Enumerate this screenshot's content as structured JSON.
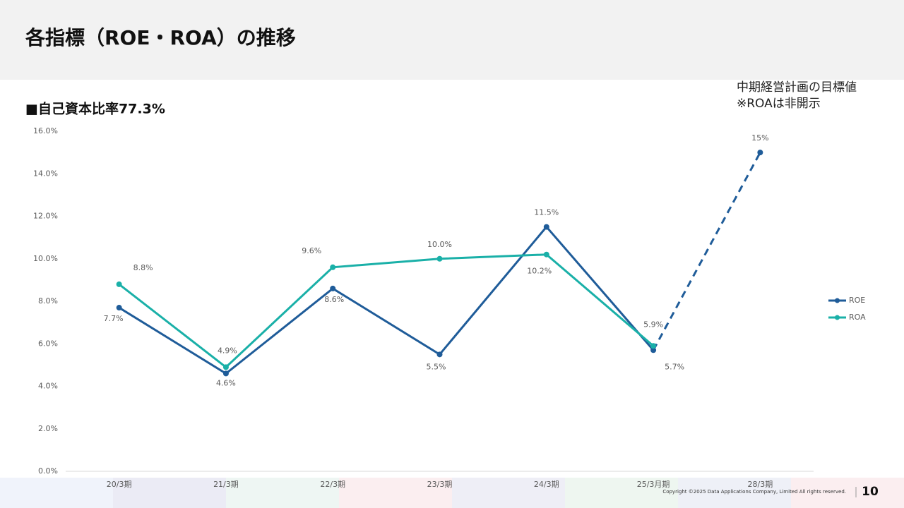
{
  "page_title": "各指標（ROE・ROA）の推移",
  "subtitle": "■自己資本比率77.3%",
  "annotation": [
    "中期経営計画の目標値",
    "※ROAは非開示"
  ],
  "footer": {
    "copyright": "Copyright ©2025  Data Applications Company, Limited All rights reserved.",
    "page_number": "10"
  },
  "chart_data": {
    "type": "line",
    "categories": [
      "20/3期",
      "21/3期",
      "22/3期",
      "23/3期",
      "24/3期",
      "25/3月期",
      "28/3期"
    ],
    "forecast_categories": [
      "28/3期"
    ],
    "series": [
      {
        "name": "ROE",
        "color": "#1f5c99",
        "values": [
          7.7,
          4.6,
          8.6,
          5.5,
          11.5,
          5.7,
          15
        ],
        "value_labels": [
          "7.7%",
          "4.6%",
          "8.6%",
          "5.5%",
          "11.5%",
          "5.7%",
          "15%"
        ]
      },
      {
        "name": "ROA",
        "color": "#1ab0a8",
        "values": [
          8.8,
          4.9,
          9.6,
          10.0,
          10.2,
          5.9,
          null
        ],
        "value_labels": [
          "8.8%",
          "4.9%",
          "9.6%",
          "10.0%",
          "10.2%",
          "5.9%",
          null
        ]
      }
    ],
    "ylim": [
      0,
      16
    ],
    "yticks": [
      {
        "value": 0,
        "label": "0.0%"
      },
      {
        "value": 2,
        "label": "2.0%"
      },
      {
        "value": 4,
        "label": "4.0%"
      },
      {
        "value": 6,
        "label": "6.0%"
      },
      {
        "value": 8,
        "label": "8.0%"
      },
      {
        "value": 10,
        "label": "10.0%"
      },
      {
        "value": 12,
        "label": "12.0%"
      },
      {
        "value": 14,
        "label": "14.0%"
      },
      {
        "value": 16,
        "label": "16.0%"
      }
    ],
    "legend": "right"
  }
}
